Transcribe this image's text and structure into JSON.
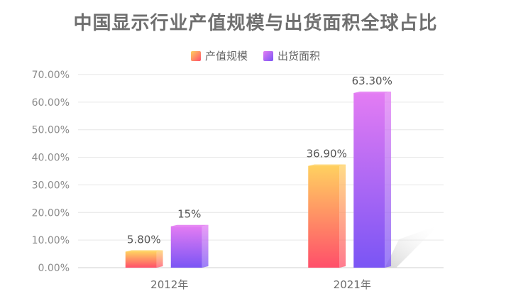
{
  "chart_data": {
    "type": "bar",
    "title": "中国显示行业产值规模与出货面积全球占比",
    "categories": [
      "2012年",
      "2021年"
    ],
    "series": [
      {
        "name": "产值规模",
        "values": [
          5.8,
          36.9
        ],
        "labels": [
          "5.80%",
          "36.90%"
        ],
        "color_top": "#ffd060",
        "color_bottom": "#ff4f6a"
      },
      {
        "name": "出货面积",
        "values": [
          15,
          63.3
        ],
        "labels": [
          "15%",
          "63.30%"
        ],
        "color_top": "#e37cf3",
        "color_bottom": "#7a55f4"
      }
    ],
    "ylim": [
      0,
      70
    ],
    "yticks": [
      "0.00%",
      "10.00%",
      "20.00%",
      "30.00%",
      "40.00%",
      "50.00%",
      "60.00%",
      "70.00%"
    ],
    "grid": true,
    "legend": "top-center"
  }
}
